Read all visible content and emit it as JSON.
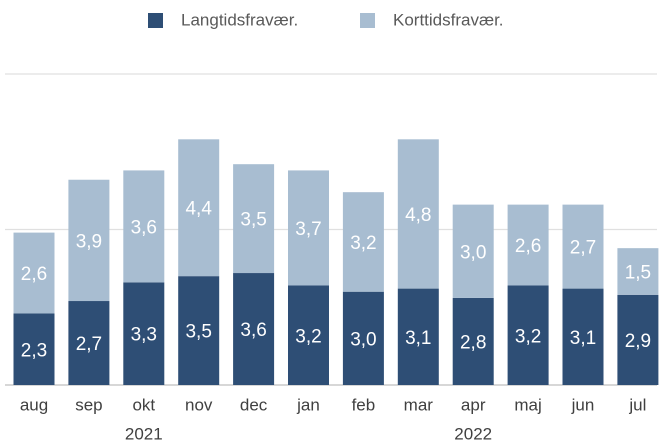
{
  "chart_data": {
    "type": "stacked_bar",
    "categories": [
      "aug",
      "sep",
      "okt",
      "nov",
      "dec",
      "jan",
      "feb",
      "mar",
      "apr",
      "maj",
      "jun",
      "jul"
    ],
    "x_groups": [
      {
        "label": "2021",
        "start": "aug",
        "end": "dec"
      },
      {
        "label": "2022",
        "start": "jan",
        "end": "jul"
      }
    ],
    "series": [
      {
        "name": "Langtidsfravær.",
        "color": "#2e4e75",
        "values": [
          2.3,
          2.7,
          3.3,
          3.5,
          3.6,
          3.2,
          3.0,
          3.1,
          2.8,
          3.2,
          3.1,
          2.9
        ],
        "value_labels": [
          "2,3",
          "2,7",
          "3,3",
          "3,5",
          "3,6",
          "3,2",
          "3,0",
          "3,1",
          "2,8",
          "3,2",
          "3,1",
          "2,9"
        ]
      },
      {
        "name": "Korttidsfravær.",
        "color": "#a8bdd1",
        "values": [
          2.6,
          3.9,
          3.6,
          4.4,
          3.5,
          3.7,
          3.2,
          4.8,
          3.0,
          2.6,
          2.7,
          1.5
        ],
        "value_labels": [
          "2,6",
          "3,9",
          "3,6",
          "4,4",
          "3,5",
          "3,7",
          "3,2",
          "4,8",
          "3,0",
          "2,6",
          "2,7",
          "1,5"
        ]
      }
    ],
    "ylim": [
      0,
      10
    ],
    "yticks": [
      0,
      5,
      10
    ],
    "grid": true,
    "legend": "top"
  }
}
